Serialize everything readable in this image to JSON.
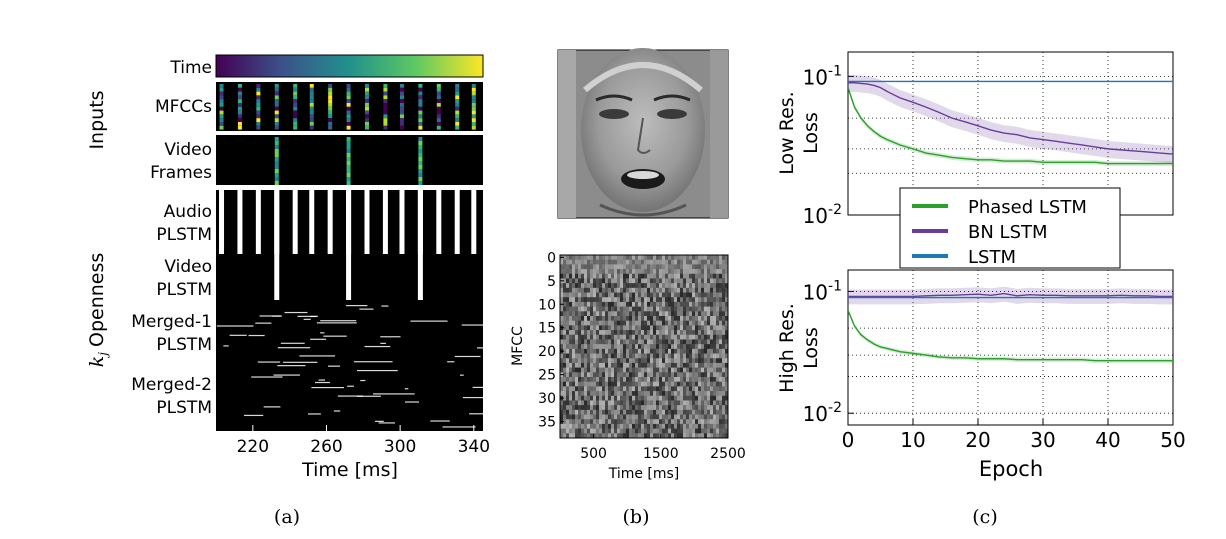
{
  "panel_a": {
    "caption": "(a)",
    "group_inputs": "Inputs",
    "group_openness_prefix": "k",
    "group_openness_subscript": "j",
    "group_openness_suffix": "Openness",
    "rows": {
      "time": [
        "Time"
      ],
      "mfcc": [
        "MFCCs"
      ],
      "video": [
        "Video",
        "Frames"
      ],
      "audio_plstm": [
        "Audio",
        "PLSTM"
      ],
      "video_plstm": [
        "Video",
        "PLSTM"
      ],
      "merged1": [
        "Merged-1",
        "PLSTM"
      ],
      "merged2": [
        "Merged-2",
        "PLSTM"
      ]
    },
    "xlabel": "Time [ms]",
    "xlim": [
      200,
      345
    ],
    "xticks": [
      220,
      260,
      300,
      340
    ],
    "video_frame_times_ms": [
      233,
      272,
      311
    ],
    "audio_pulse_times_ms": [
      203,
      213,
      223,
      233,
      243,
      252,
      262,
      272,
      282,
      292,
      301,
      311,
      321,
      331,
      340
    ],
    "colors": {
      "viridis_start": "#440154",
      "viridis_mid": "#21918c",
      "viridis_end": "#fde725"
    }
  },
  "panel_b": {
    "caption": "(b)",
    "ylabel": "MFCC",
    "yticks": [
      0,
      5,
      10,
      15,
      20,
      25,
      30,
      35
    ],
    "ylim": [
      0,
      39
    ],
    "xlabel": "Time [ms]",
    "xticks": [
      500,
      1500,
      2500
    ],
    "xlim": [
      0,
      2500
    ],
    "face_image": "face-grayscale"
  },
  "panel_c": {
    "caption": "(c)",
    "legend": [
      {
        "name": "Phased LSTM",
        "color": "#2ca02c"
      },
      {
        "name": "BN LSTM",
        "color": "#6a3d9a"
      },
      {
        "name": "LSTM",
        "color": "#1f77b4"
      }
    ],
    "xlabel": "Epoch",
    "xticks": [
      0,
      10,
      20,
      30,
      40,
      50
    ],
    "ytick_base": "10",
    "ytick_exponents": [
      "-1",
      "-2"
    ]
  },
  "chart_data": [
    {
      "type": "line",
      "title": "Low Res. Loss",
      "ylabel": "Low Res. Loss",
      "xlabel": "Epoch",
      "yscale": "log",
      "ylim": [
        0.01,
        0.15
      ],
      "xlim": [
        0,
        50
      ],
      "x": [
        0,
        1,
        2,
        3,
        4,
        5,
        6,
        8,
        10,
        12,
        14,
        16,
        18,
        20,
        22,
        24,
        26,
        28,
        30,
        32,
        34,
        36,
        38,
        40,
        42,
        44,
        46,
        48,
        50
      ],
      "series": [
        {
          "name": "Phased LSTM",
          "values": [
            0.083,
            0.06,
            0.05,
            0.044,
            0.04,
            0.037,
            0.035,
            0.032,
            0.03,
            0.028,
            0.027,
            0.026,
            0.0255,
            0.025,
            0.025,
            0.0245,
            0.0245,
            0.0245,
            0.024,
            0.024,
            0.024,
            0.024,
            0.024,
            0.0235,
            0.0235,
            0.0235,
            0.0235,
            0.0235,
            0.0235
          ]
        },
        {
          "name": "BN LSTM",
          "values": [
            0.09,
            0.09,
            0.089,
            0.088,
            0.086,
            0.083,
            0.078,
            0.07,
            0.065,
            0.06,
            0.055,
            0.05,
            0.047,
            0.044,
            0.041,
            0.039,
            0.038,
            0.036,
            0.035,
            0.034,
            0.033,
            0.032,
            0.031,
            0.03,
            0.0295,
            0.029,
            0.0285,
            0.028,
            0.0275
          ]
        },
        {
          "name": "LSTM",
          "values": [
            0.092,
            0.092,
            0.092,
            0.092,
            0.092,
            0.092,
            0.092,
            0.092,
            0.092,
            0.092,
            0.092,
            0.092,
            0.092,
            0.092,
            0.092,
            0.092,
            0.092,
            0.092,
            0.092,
            0.092,
            0.092,
            0.092,
            0.092,
            0.092,
            0.092,
            0.092,
            0.092,
            0.092,
            0.092
          ]
        }
      ]
    },
    {
      "type": "line",
      "title": "High Res. Loss",
      "ylabel": "High Res. Loss",
      "xlabel": "Epoch",
      "yscale": "log",
      "ylim": [
        0.008,
        0.15
      ],
      "xlim": [
        0,
        50
      ],
      "x": [
        0,
        1,
        2,
        3,
        4,
        5,
        6,
        8,
        10,
        12,
        14,
        16,
        18,
        20,
        22,
        24,
        26,
        28,
        30,
        32,
        34,
        36,
        38,
        40,
        42,
        44,
        46,
        48,
        50
      ],
      "series": [
        {
          "name": "Phased LSTM",
          "values": [
            0.07,
            0.052,
            0.044,
            0.04,
            0.037,
            0.035,
            0.034,
            0.032,
            0.031,
            0.03,
            0.029,
            0.0285,
            0.0285,
            0.028,
            0.028,
            0.028,
            0.0275,
            0.0275,
            0.0275,
            0.0275,
            0.0275,
            0.0275,
            0.027,
            0.027,
            0.027,
            0.027,
            0.027,
            0.027,
            0.027
          ]
        },
        {
          "name": "BN LSTM",
          "values": [
            0.091,
            0.091,
            0.091,
            0.091,
            0.091,
            0.091,
            0.091,
            0.091,
            0.091,
            0.092,
            0.093,
            0.093,
            0.094,
            0.095,
            0.093,
            0.096,
            0.092,
            0.094,
            0.093,
            0.093,
            0.092,
            0.092,
            0.092,
            0.092,
            0.093,
            0.092,
            0.092,
            0.091,
            0.091
          ]
        },
        {
          "name": "LSTM",
          "values": [
            0.089,
            0.089,
            0.089,
            0.089,
            0.089,
            0.089,
            0.089,
            0.089,
            0.089,
            0.089,
            0.089,
            0.089,
            0.089,
            0.089,
            0.089,
            0.089,
            0.089,
            0.089,
            0.089,
            0.089,
            0.089,
            0.089,
            0.089,
            0.089,
            0.089,
            0.089,
            0.089,
            0.089,
            0.089
          ]
        }
      ]
    }
  ]
}
